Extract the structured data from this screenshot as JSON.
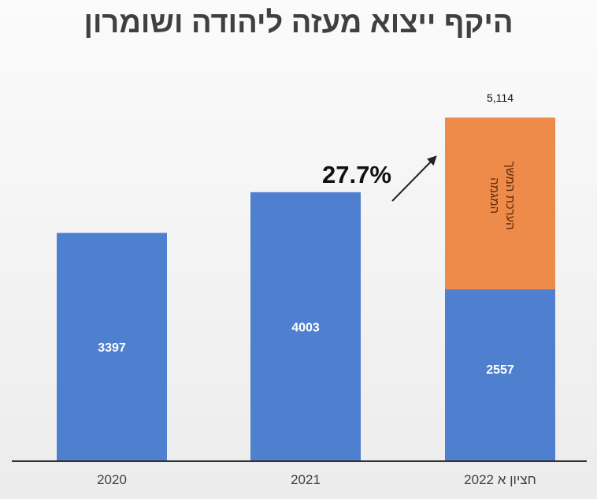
{
  "chart_data": {
    "type": "bar",
    "stacked": true,
    "title": "היקף ייצוא מעזה ליהודה ושומרון",
    "categories": [
      "2020",
      "2021",
      "חציון א 2022"
    ],
    "series": [
      {
        "name": "",
        "color": "#4f7fcf",
        "values": [
          3397,
          4003,
          2557
        ],
        "labels": [
          "3397",
          "4003",
          "2557"
        ]
      },
      {
        "name": "הערכת המשך המגמה",
        "color": "#ef8b4a",
        "values": [
          0,
          0,
          2557
        ]
      }
    ],
    "total_labels": [
      "",
      "",
      "5,114"
    ],
    "annotation": {
      "text": "27.7%",
      "arrow": "up-right"
    },
    "ylim": [
      0,
      5690
    ],
    "grid": false,
    "legend": "none"
  }
}
